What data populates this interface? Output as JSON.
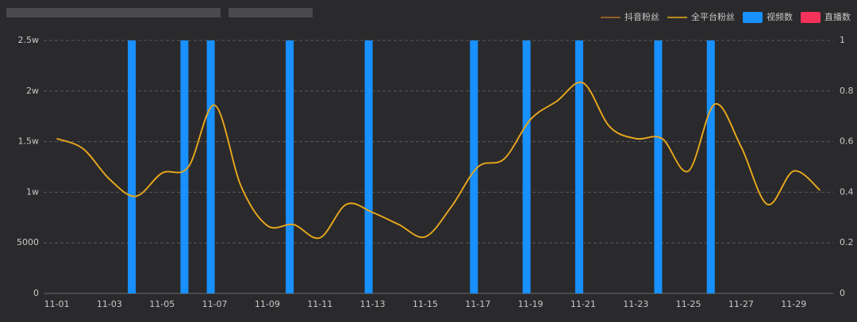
{
  "chart_data": {
    "type": "combo",
    "categories": [
      "11-01",
      null,
      "11-03",
      null,
      "11-05",
      null,
      "11-07",
      null,
      "11-09",
      null,
      "11-11",
      null,
      "11-13",
      null,
      "11-15",
      null,
      "11-17",
      null,
      "11-19",
      null,
      "11-21",
      null,
      "11-23",
      null,
      "11-25",
      null,
      "11-27",
      null,
      "11-29",
      null
    ],
    "series": [
      {
        "name": "抖音粉丝",
        "kind": "line",
        "color": "#b8702a",
        "values": [
          15300,
          14300,
          11300,
          9600,
          11900,
          12500,
          18600,
          10600,
          6700,
          6800,
          5500,
          8800,
          8000,
          6800,
          5600,
          8600,
          12500,
          13300,
          17200,
          19000,
          20800,
          16500,
          15300,
          15300,
          12100,
          18700,
          14500,
          8800,
          12100,
          10200
        ]
      },
      {
        "name": "全平台粉丝",
        "kind": "line",
        "color": "#e8a91c",
        "values": [
          15300,
          14300,
          11300,
          9600,
          11900,
          12500,
          18600,
          10600,
          6700,
          6800,
          5500,
          8800,
          8000,
          6800,
          5600,
          8600,
          12500,
          13300,
          17200,
          19000,
          20800,
          16500,
          15300,
          15300,
          12100,
          18700,
          14500,
          8800,
          12100,
          10200
        ]
      },
      {
        "name": "视频数",
        "kind": "bar",
        "axis": "y2",
        "color": "#1890ff",
        "values": [
          0,
          0,
          0,
          1,
          0,
          1,
          1,
          0,
          0,
          1,
          0,
          0,
          1,
          0,
          0,
          0,
          1,
          0,
          1,
          0,
          1,
          0,
          0,
          1,
          0,
          1,
          0,
          0,
          0,
          0
        ]
      },
      {
        "name": "直播数",
        "kind": "bar",
        "axis": "y2",
        "color": "#f5325a",
        "values": [
          0,
          0,
          0,
          0,
          0,
          0,
          0,
          0,
          0,
          0,
          0,
          0,
          0,
          0,
          0,
          0,
          0,
          0,
          0,
          0,
          0,
          0,
          0,
          0,
          0,
          0,
          0,
          0,
          0,
          0
        ]
      }
    ],
    "ylim": [
      0,
      25000
    ],
    "yticks": [
      0,
      5000,
      {
        "value": 10000,
        "label": "1w"
      },
      {
        "value": 15000,
        "label": "1.5w"
      },
      {
        "value": 20000,
        "label": "2w"
      },
      {
        "value": 25000,
        "label": "2.5w"
      }
    ],
    "y2lim": [
      0,
      1
    ],
    "y2ticks": [
      0,
      0.2,
      0.4,
      0.6,
      0.8,
      1
    ],
    "grid": true,
    "legend": "top-right"
  }
}
